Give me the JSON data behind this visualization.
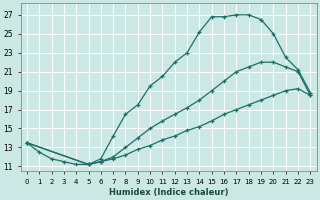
{
  "background_color": "#cce8e4",
  "grid_color": "#b8d8d4",
  "line_color": "#1a7068",
  "xlabel": "Humidex (Indice chaleur)",
  "xlim": [
    -0.5,
    23.5
  ],
  "ylim": [
    10.5,
    28.2
  ],
  "xtick_labels": [
    "0",
    "1",
    "2",
    "3",
    "4",
    "5",
    "6",
    "7",
    "8",
    "9",
    "10",
    "11",
    "12",
    "13",
    "14",
    "15",
    "16",
    "17",
    "18",
    "19",
    "20",
    "21",
    "22",
    "23"
  ],
  "ytick_vals": [
    11,
    13,
    15,
    17,
    19,
    21,
    23,
    25,
    27
  ],
  "curve1_x": [
    0,
    1,
    2,
    3,
    4,
    5,
    6,
    7,
    8,
    9,
    10,
    11,
    12,
    13,
    14,
    15,
    16,
    17,
    18,
    19,
    20,
    21,
    22,
    23
  ],
  "curve1_y": [
    13.5,
    12.5,
    11.8,
    11.5,
    11.2,
    11.2,
    11.8,
    14.2,
    16.5,
    17.5,
    19.5,
    20.5,
    22.0,
    23.0,
    25.2,
    26.8,
    26.8,
    27.0,
    27.0,
    26.5,
    25.0,
    22.5,
    21.2,
    18.8
  ],
  "curve2_x": [
    0,
    5,
    6,
    7,
    8,
    9,
    10,
    11,
    12,
    13,
    14,
    15,
    16,
    17,
    18,
    19,
    20,
    21,
    22,
    23
  ],
  "curve2_y": [
    13.5,
    11.2,
    11.5,
    12.0,
    13.0,
    14.0,
    15.0,
    15.8,
    16.5,
    17.2,
    18.0,
    19.0,
    20.0,
    21.0,
    21.5,
    22.0,
    22.0,
    21.5,
    21.0,
    18.5
  ],
  "curve3_x": [
    0,
    5,
    6,
    7,
    8,
    9,
    10,
    11,
    12,
    13,
    14,
    15,
    16,
    17,
    18,
    19,
    20,
    21,
    22,
    23
  ],
  "curve3_y": [
    13.5,
    11.2,
    11.5,
    11.8,
    12.2,
    12.8,
    13.2,
    13.8,
    14.2,
    14.8,
    15.2,
    15.8,
    16.5,
    17.0,
    17.5,
    18.0,
    18.5,
    19.0,
    19.2,
    18.5
  ]
}
